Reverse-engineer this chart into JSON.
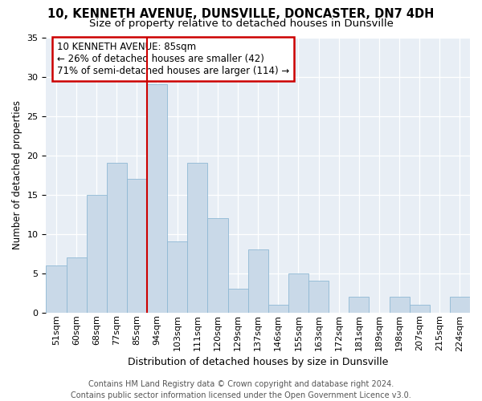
{
  "title": "10, KENNETH AVENUE, DUNSVILLE, DONCASTER, DN7 4DH",
  "subtitle": "Size of property relative to detached houses in Dunsville",
  "xlabel": "Distribution of detached houses by size in Dunsville",
  "ylabel": "Number of detached properties",
  "bin_labels": [
    "51sqm",
    "60sqm",
    "68sqm",
    "77sqm",
    "85sqm",
    "94sqm",
    "103sqm",
    "111sqm",
    "120sqm",
    "129sqm",
    "137sqm",
    "146sqm",
    "155sqm",
    "163sqm",
    "172sqm",
    "181sqm",
    "189sqm",
    "198sqm",
    "207sqm",
    "215sqm",
    "224sqm"
  ],
  "bar_heights": [
    6,
    7,
    15,
    19,
    17,
    29,
    9,
    19,
    12,
    3,
    8,
    1,
    5,
    4,
    0,
    2,
    0,
    2,
    1,
    0,
    2
  ],
  "bar_color": "#c9d9e8",
  "bar_edge_color": "#8fb8d4",
  "vline_x_index": 4,
  "vline_color": "#cc0000",
  "annotation_line1": "10 KENNETH AVENUE: 85sqm",
  "annotation_line2": "← 26% of detached houses are smaller (42)",
  "annotation_line3": "71% of semi-detached houses are larger (114) →",
  "annotation_box_color": "#ffffff",
  "annotation_box_edge_color": "#cc0000",
  "ylim": [
    0,
    35
  ],
  "yticks": [
    0,
    5,
    10,
    15,
    20,
    25,
    30,
    35
  ],
  "footer": "Contains HM Land Registry data © Crown copyright and database right 2024.\nContains public sector information licensed under the Open Government Licence v3.0.",
  "plot_bg_color": "#e8eef5",
  "title_fontsize": 10.5,
  "subtitle_fontsize": 9.5,
  "xlabel_fontsize": 9,
  "ylabel_fontsize": 8.5,
  "tick_fontsize": 8,
  "footer_fontsize": 7,
  "annotation_fontsize": 8.5
}
